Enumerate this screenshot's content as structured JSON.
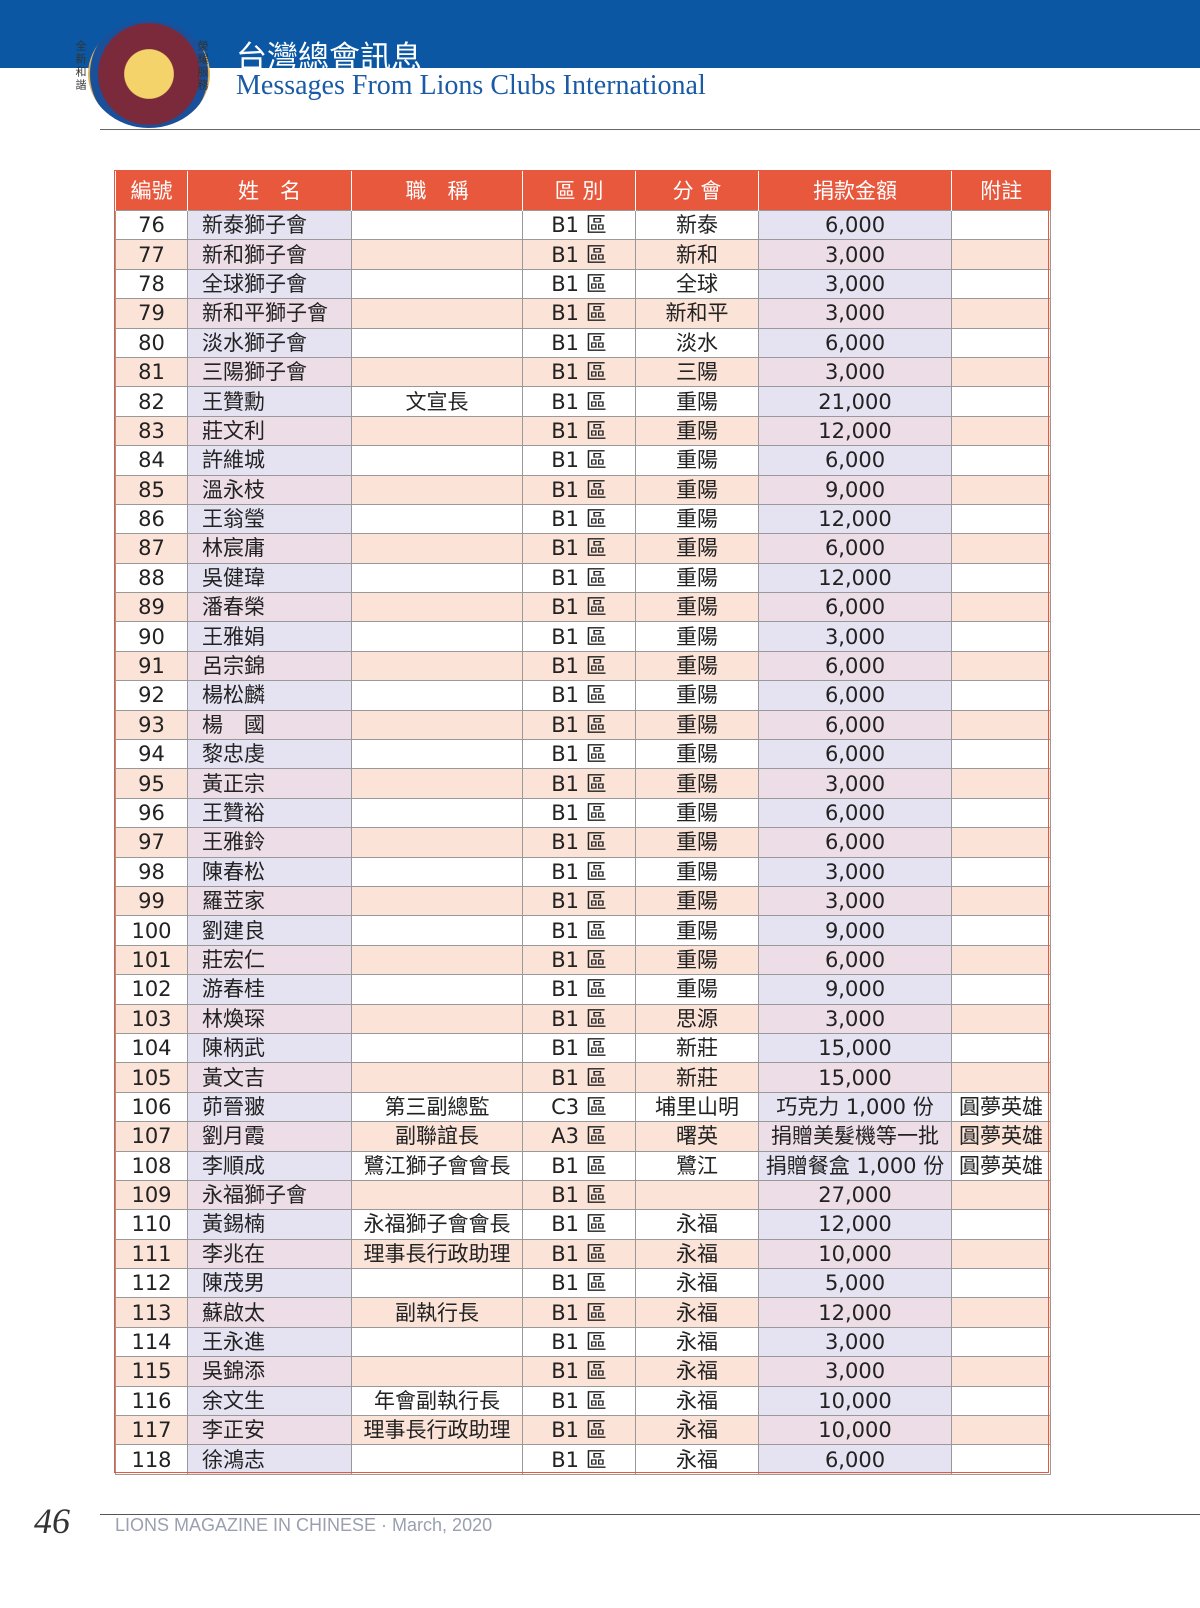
{
  "header": {
    "title": "台灣總會訊息",
    "subtitle": "Messages From Lions Clubs International",
    "logo_left": "全新和諧",
    "logo_right": "榮耀服務"
  },
  "table": {
    "columns": [
      "編號",
      "姓　名",
      "職　稱",
      "區 別",
      "分 會",
      "捐款金額",
      "附註"
    ],
    "rows": [
      [
        "76",
        "新泰獅子會",
        null,
        "B1 區",
        "新泰",
        "6,000",
        null
      ],
      [
        "77",
        "新和獅子會",
        null,
        "B1 區",
        "新和",
        "3,000",
        null
      ],
      [
        "78",
        "全球獅子會",
        null,
        "B1 區",
        "全球",
        "3,000",
        null
      ],
      [
        "79",
        "新和平獅子會",
        null,
        "B1 區",
        "新和平",
        "3,000",
        null
      ],
      [
        "80",
        "淡水獅子會",
        null,
        "B1 區",
        "淡水",
        "6,000",
        null
      ],
      [
        "81",
        "三陽獅子會",
        null,
        "B1 區",
        "三陽",
        "3,000",
        null
      ],
      [
        "82",
        "王贊勳",
        "文宣長",
        "B1 區",
        "重陽",
        "21,000",
        null
      ],
      [
        "83",
        "莊文利",
        null,
        "B1 區",
        "重陽",
        "12,000",
        null
      ],
      [
        "84",
        "許維城",
        null,
        "B1 區",
        "重陽",
        "6,000",
        null
      ],
      [
        "85",
        "溫永枝",
        null,
        "B1 區",
        "重陽",
        "9,000",
        null
      ],
      [
        "86",
        "王翁瑩",
        null,
        "B1 區",
        "重陽",
        "12,000",
        null
      ],
      [
        "87",
        "林宸庸",
        null,
        "B1 區",
        "重陽",
        "6,000",
        null
      ],
      [
        "88",
        "吳健瑋",
        null,
        "B1 區",
        "重陽",
        "12,000",
        null
      ],
      [
        "89",
        "潘春榮",
        null,
        "B1 區",
        "重陽",
        "6,000",
        null
      ],
      [
        "90",
        "王雅娟",
        null,
        "B1 區",
        "重陽",
        "3,000",
        null
      ],
      [
        "91",
        "呂宗錦",
        null,
        "B1 區",
        "重陽",
        "6,000",
        null
      ],
      [
        "92",
        "楊松麟",
        null,
        "B1 區",
        "重陽",
        "6,000",
        null
      ],
      [
        "93",
        "楊　國",
        null,
        "B1 區",
        "重陽",
        "6,000",
        null
      ],
      [
        "94",
        "黎忠虔",
        null,
        "B1 區",
        "重陽",
        "6,000",
        null
      ],
      [
        "95",
        "黃正宗",
        null,
        "B1 區",
        "重陽",
        "3,000",
        null
      ],
      [
        "96",
        "王贊裕",
        null,
        "B1 區",
        "重陽",
        "6,000",
        null
      ],
      [
        "97",
        "王雅鈴",
        null,
        "B1 區",
        "重陽",
        "6,000",
        null
      ],
      [
        "98",
        "陳春松",
        null,
        "B1 區",
        "重陽",
        "3,000",
        null
      ],
      [
        "99",
        "羅苙家",
        null,
        "B1 區",
        "重陽",
        "3,000",
        null
      ],
      [
        "100",
        "劉建良",
        null,
        "B1 區",
        "重陽",
        "9,000",
        null
      ],
      [
        "101",
        "莊宏仁",
        null,
        "B1 區",
        "重陽",
        "6,000",
        null
      ],
      [
        "102",
        "游春桂",
        null,
        "B1 區",
        "重陽",
        "9,000",
        null
      ],
      [
        "103",
        "林煥琛",
        null,
        "B1 區",
        "思源",
        "3,000",
        null
      ],
      [
        "104",
        "陳柄武",
        null,
        "B1 區",
        "新莊",
        "15,000",
        null
      ],
      [
        "105",
        "黃文吉",
        null,
        "B1 區",
        "新莊",
        "15,000",
        null
      ],
      [
        "106",
        "茆晉翍",
        "第三副總監",
        "C3 區",
        "埔里山明",
        "巧克力 1,000 份",
        "圓夢英雄"
      ],
      [
        "107",
        "劉月霞",
        "副聯誼長",
        "A3 區",
        "曙英",
        "捐贈美髮機等一批",
        "圓夢英雄"
      ],
      [
        "108",
        "李順成",
        "鷺江獅子會會長",
        "B1 區",
        "鷺江",
        "捐贈餐盒 1,000 份",
        "圓夢英雄"
      ],
      [
        "109",
        "永福獅子會",
        null,
        "B1 區",
        null,
        "27,000",
        null
      ],
      [
        "110",
        "黃錫楠",
        "永福獅子會會長",
        "B1 區",
        "永福",
        "12,000",
        null
      ],
      [
        "111",
        "李兆在",
        "理事長行政助理",
        "B1 區",
        "永福",
        "10,000",
        null
      ],
      [
        "112",
        "陳茂男",
        null,
        "B1 區",
        "永福",
        "5,000",
        null
      ],
      [
        "113",
        "蘇啟太",
        "副執行長",
        "B1 區",
        "永福",
        "12,000",
        null
      ],
      [
        "114",
        "王永進",
        null,
        "B1 區",
        "永福",
        "3,000",
        null
      ],
      [
        "115",
        "吳錦添",
        null,
        "B1 區",
        "永福",
        "3,000",
        null
      ],
      [
        "116",
        "余文生",
        "年會副執行長",
        "B1 區",
        "永福",
        "10,000",
        null
      ],
      [
        "117",
        "李正安",
        "理事長行政助理",
        "B1 區",
        "永福",
        "10,000",
        null
      ],
      [
        "118",
        "徐鴻志",
        null,
        "B1 區",
        "永福",
        "6,000",
        null
      ]
    ]
  },
  "footer": {
    "page": "46",
    "magazine": "LIONS MAGAZINE IN CHINESE · March, 2020"
  }
}
